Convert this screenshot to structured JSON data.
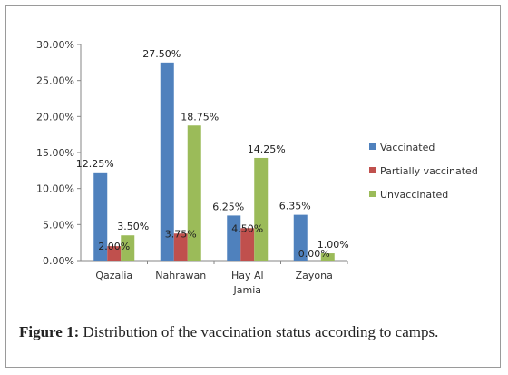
{
  "chart_data": {
    "type": "bar",
    "categories": [
      [
        "Qazalia"
      ],
      [
        "Nahrawan"
      ],
      [
        "Hay Al",
        "Jamia"
      ],
      [
        "Zayona"
      ]
    ],
    "series": [
      {
        "name": "Vaccinated",
        "color": "#4F81BD",
        "values": [
          12.25,
          27.5,
          6.25,
          6.35
        ],
        "labels": [
          "12.25%",
          "27.50%",
          "6.25%",
          "6.35%"
        ]
      },
      {
        "name": "Partially vaccinated",
        "color": "#C0504D",
        "values": [
          2.0,
          3.75,
          4.5,
          0.0
        ],
        "labels": [
          "2.00%",
          "3.75%",
          "4.50%",
          "0.00%"
        ]
      },
      {
        "name": "Unvaccinated",
        "color": "#9BBB59",
        "values": [
          3.5,
          18.75,
          14.25,
          1.0
        ],
        "labels": [
          "3.50%",
          "18.75%",
          "14.25%",
          "1.00%"
        ]
      }
    ],
    "ylim": [
      0,
      30
    ],
    "yticks": [
      "0.00%",
      "5.00%",
      "10.00%",
      "15.00%",
      "20.00%",
      "25.00%",
      "30.00%"
    ],
    "legend_position": "right",
    "grid": false
  },
  "caption": {
    "label": "Figure 1:",
    "text": " Distribution of the vaccination status according to camps."
  }
}
